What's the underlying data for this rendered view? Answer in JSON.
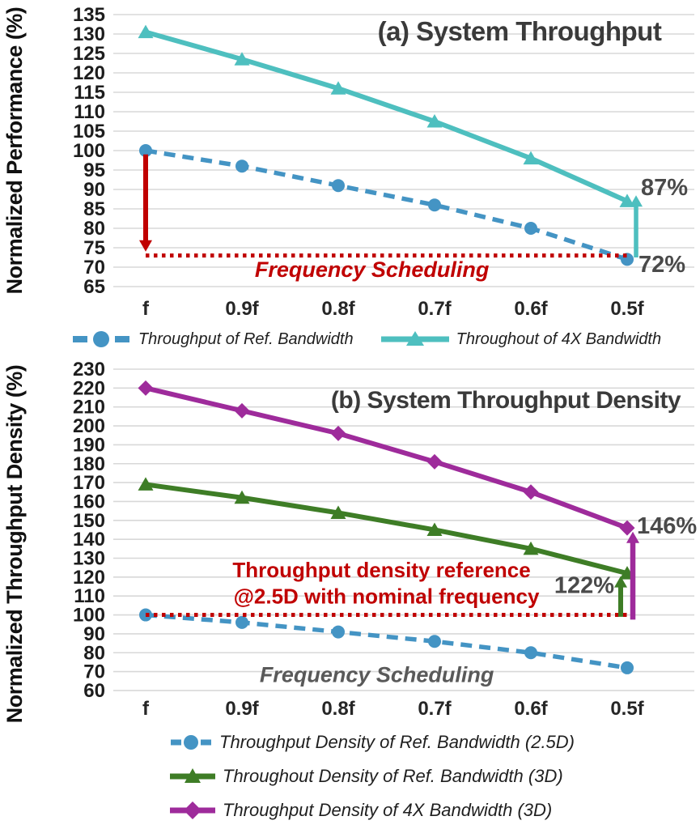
{
  "colors": {
    "ref_blue": "#4494C4",
    "bw4x_teal": "#4EBFBF",
    "green_3d": "#3E7D26",
    "purple_3d": "#9E2B9B",
    "red_annotation": "#C00000",
    "gray_annotation": "#4A4A4A",
    "gray_label": "#595959"
  },
  "chart_data": [
    {
      "type": "line",
      "title": "(a) System Throughput",
      "ylabel": "Normalized Performance (%)",
      "xlabel": "",
      "x_categories": [
        "f",
        "0.9f",
        "0.8f",
        "0.7f",
        "0.6f",
        "0.5f"
      ],
      "y_axis": {
        "min": 65,
        "max": 135,
        "step": 5
      },
      "grid": true,
      "series": [
        {
          "name": "Throughput of Ref. Bandwidth",
          "color": "#4494C4",
          "line": "dashed",
          "marker": "circle",
          "values": [
            100,
            96,
            91,
            86,
            80,
            72
          ]
        },
        {
          "name": "Throughout of 4X Bandwidth",
          "color": "#4EBFBF",
          "line": "solid",
          "marker": "triangle",
          "values": [
            130.5,
            123.5,
            116,
            107.5,
            98,
            87
          ]
        }
      ],
      "annotations": [
        {
          "type": "arrow",
          "x_cat": 0,
          "dx": 0,
          "from": 99,
          "to": 74,
          "color": "#C00000",
          "width": 6
        },
        {
          "type": "ref_line",
          "value": 73,
          "x_from": 0,
          "x_to": 5,
          "dx_to": 5,
          "color": "#C00000"
        },
        {
          "type": "arrow",
          "x_cat": 5,
          "dx": 11,
          "from": 72.5,
          "to": 88.5,
          "color": "#4EBFBF",
          "width": 5.5
        },
        {
          "type": "label",
          "text": "87%",
          "x_cat": 5,
          "dx": 17,
          "value": 88.5,
          "anchor": "start",
          "size": 29,
          "color": "#4A4A4A",
          "bold": true
        },
        {
          "type": "label",
          "text": "72%",
          "x_cat": 5,
          "dx": 14,
          "value": 68.8,
          "anchor": "start",
          "size": 29,
          "color": "#4A4A4A",
          "bold": true
        },
        {
          "type": "label",
          "text": "Frequency Scheduling",
          "x_cat": 2.35,
          "dx": 0,
          "value": 67.5,
          "anchor": "middle",
          "size": 27,
          "color": "#C00000",
          "bold": true,
          "italic": true
        }
      ]
    },
    {
      "type": "line",
      "title": "(b) System Throughput Density",
      "ylabel": "Normalized Throughput Density (%)",
      "xlabel": "",
      "x_categories": [
        "f",
        "0.9f",
        "0.8f",
        "0.7f",
        "0.6f",
        "0.5f"
      ],
      "y_axis": {
        "min": 60,
        "max": 230,
        "step": 10
      },
      "grid": true,
      "series": [
        {
          "name": "Throughput Density of Ref. Bandwidth (2.5D)",
          "color": "#4494C4",
          "line": "dashed",
          "marker": "circle",
          "values": [
            100,
            96,
            91,
            86,
            80,
            72
          ]
        },
        {
          "name": "Throughout Density of Ref. Bandwidth (3D)",
          "color": "#3E7D26",
          "line": "solid",
          "marker": "triangle",
          "values": [
            169,
            162,
            154,
            145,
            135,
            122
          ]
        },
        {
          "name": "Throughput Density of 4X Bandwidth (3D)",
          "color": "#9E2B9B",
          "line": "solid",
          "marker": "diamond",
          "values": [
            220,
            208,
            196,
            181,
            165,
            146
          ]
        }
      ],
      "annotations": [
        {
          "type": "label",
          "text": "Throughput density reference",
          "x_cat": 2.45,
          "dx": 0,
          "value": 120,
          "anchor": "middle",
          "size": 26,
          "color": "#C00000",
          "bold": true
        },
        {
          "type": "label",
          "text": "@2.5D with nominal frequency",
          "x_cat": 2.5,
          "dx": 0,
          "value": 106,
          "anchor": "middle",
          "size": 26,
          "color": "#C00000",
          "bold": true
        },
        {
          "type": "ref_line",
          "value": 100,
          "x_from": 0,
          "x_to": 5,
          "dx_to": 10,
          "color": "#C00000"
        },
        {
          "type": "arrow",
          "x_cat": 5,
          "dx": -8,
          "from": 99,
          "to": 120.5,
          "color": "#3E7D26",
          "width": 6
        },
        {
          "type": "arrow",
          "x_cat": 5,
          "dx": 7,
          "from": 97.5,
          "to": 144,
          "color": "#9E2B9B",
          "width": 6.5
        },
        {
          "type": "label",
          "text": "146%",
          "x_cat": 5,
          "dx": 12,
          "value": 143,
          "anchor": "start",
          "size": 29,
          "color": "#4A4A4A",
          "bold": true
        },
        {
          "type": "label",
          "text": "122%",
          "x_cat": 5,
          "dx": -16,
          "value": 111.5,
          "anchor": "end",
          "size": 29,
          "color": "#4A4A4A",
          "bold": true
        },
        {
          "type": "label",
          "text": "Frequency Scheduling",
          "x_cat": 2.4,
          "dx": 0,
          "value": 64.5,
          "anchor": "middle",
          "size": 27,
          "color": "#595959",
          "bold": true,
          "italic": true
        }
      ]
    }
  ]
}
